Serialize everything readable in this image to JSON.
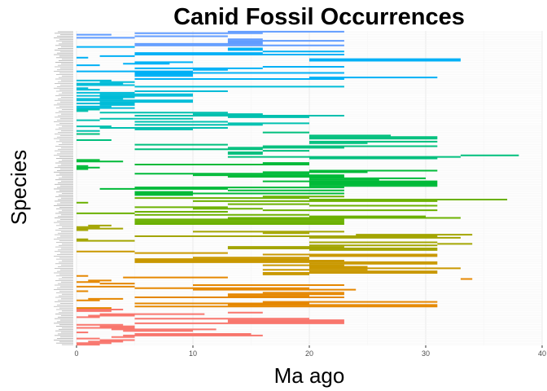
{
  "chart_data": {
    "type": "bar",
    "title": "Canid Fossil Occurrences",
    "xlabel": "Ma ago",
    "ylabel": "Species",
    "xlim": [
      0,
      40
    ],
    "x_ticks": [
      0,
      10,
      20,
      30,
      40
    ],
    "grid": true,
    "legend": "none",
    "colors": [
      "#f8766d",
      "#e58700",
      "#c99800",
      "#a3a500",
      "#6bb100",
      "#00ba38",
      "#00bf7d",
      "#00c0af",
      "#00bcd8",
      "#00b0f6",
      "#619cff",
      "#b983ff",
      "#e76bf3",
      "#fd61d1",
      "#ff67a4"
    ],
    "series": [
      {
        "name": "",
        "ranges": [
          [
            0,
            2
          ],
          [
            0,
            3
          ],
          [
            1,
            4
          ],
          [
            2,
            5
          ],
          [
            0,
            2
          ],
          [
            3,
            5
          ],
          [
            4,
            16
          ],
          [
            5,
            15
          ],
          [
            0,
            1
          ],
          [
            4,
            10
          ],
          [
            3,
            12
          ],
          [
            0,
            5
          ],
          [
            2,
            5
          ],
          [
            0,
            4
          ],
          [
            5,
            23
          ],
          [
            13,
            23
          ],
          [
            13,
            23
          ],
          [
            5,
            20
          ],
          [
            0,
            2
          ],
          [
            1,
            5
          ],
          [
            2,
            11
          ],
          [
            13,
            16
          ],
          [
            0,
            3
          ],
          [
            0,
            4
          ]
        ]
      },
      {
        "name": "",
        "ranges": [
          [
            0,
            3
          ],
          [
            5,
            31
          ],
          [
            13,
            31
          ],
          [
            5,
            20
          ],
          [
            16,
            31
          ],
          [
            0,
            2
          ],
          [
            1,
            4
          ],
          [
            5,
            23
          ],
          [
            13,
            20
          ],
          [
            13,
            23
          ],
          [
            16,
            23
          ],
          [
            0,
            1
          ],
          [
            10,
            24
          ],
          [
            5,
            20
          ],
          [
            0,
            5
          ],
          [
            10,
            23
          ],
          [
            2,
            5
          ],
          [
            0,
            2
          ],
          [
            1,
            3
          ],
          [
            33,
            34
          ],
          [
            4,
            13
          ],
          [
            0,
            1
          ]
        ]
      },
      {
        "name": "",
        "ranges": [
          [
            16,
            20
          ],
          [
            16,
            31
          ],
          [
            20,
            31
          ],
          [
            16,
            25
          ],
          [
            20,
            33
          ],
          [
            20,
            25
          ],
          [
            16,
            23
          ],
          [
            20,
            31
          ],
          [
            5,
            31
          ],
          [
            5,
            23
          ],
          [
            5,
            20
          ],
          [
            10,
            20
          ],
          [
            20,
            31
          ],
          [
            16,
            31
          ],
          [
            5,
            13
          ],
          [
            0,
            5
          ]
        ]
      },
      {
        "name": "",
        "ranges": [
          [
            20,
            31
          ],
          [
            13,
            31
          ],
          [
            13,
            23
          ],
          [
            20,
            31
          ],
          [
            31,
            34
          ],
          [
            20,
            31
          ],
          [
            0,
            5
          ],
          [
            0,
            1
          ],
          [
            20,
            33
          ],
          [
            5,
            31
          ],
          [
            24,
            34
          ],
          [
            16,
            20
          ],
          [
            10,
            23
          ],
          [
            0,
            1
          ],
          [
            0,
            4
          ],
          [
            0,
            2
          ],
          [
            1,
            3
          ]
        ]
      },
      {
        "name": "",
        "ranges": [
          [
            5,
            23
          ],
          [
            5,
            23
          ],
          [
            5,
            23
          ],
          [
            5,
            23
          ],
          [
            13,
            33
          ],
          [
            20,
            30
          ],
          [
            5,
            20
          ],
          [
            0,
            5
          ],
          [
            5,
            13
          ],
          [
            16,
            31
          ],
          [
            10,
            16
          ],
          [
            5,
            13
          ],
          [
            20,
            31
          ],
          [
            13,
            20
          ],
          [
            0,
            1
          ],
          [
            10,
            31
          ],
          [
            20,
            37
          ],
          [
            5,
            20
          ],
          [
            16,
            23
          ]
        ]
      },
      {
        "name": "",
        "ranges": [
          [
            5,
            10
          ],
          [
            5,
            23
          ],
          [
            5,
            10
          ],
          [
            13,
            23
          ],
          [
            2,
            13
          ],
          [
            5,
            23
          ],
          [
            20,
            31
          ],
          [
            20,
            31
          ],
          [
            20,
            31
          ],
          [
            16,
            31
          ],
          [
            20,
            26
          ],
          [
            20,
            30
          ],
          [
            13,
            23
          ],
          [
            10,
            23
          ],
          [
            5,
            20
          ],
          [
            16,
            25
          ],
          [
            20,
            31
          ],
          [
            0,
            1
          ],
          [
            0,
            2
          ],
          [
            0,
            1
          ],
          [
            5,
            20
          ],
          [
            16,
            20
          ],
          [
            0,
            4
          ],
          [
            0,
            2
          ]
        ]
      },
      {
        "name": "",
        "ranges": [
          [
            20,
            31
          ],
          [
            13,
            33
          ],
          [
            33,
            38
          ],
          [
            13,
            16
          ],
          [
            13,
            16
          ],
          [
            16,
            20
          ],
          [
            5,
            16
          ],
          [
            13,
            23
          ],
          [
            16,
            31
          ],
          [
            5,
            13
          ],
          [
            20,
            25
          ],
          [
            20,
            31
          ],
          [
            0,
            3
          ],
          [
            20,
            31
          ],
          [
            20,
            31
          ],
          [
            20,
            27
          ],
          [
            0,
            2
          ],
          [
            16,
            20
          ]
        ]
      },
      {
        "name": "",
        "ranges": [
          [
            0,
            2
          ],
          [
            5,
            10
          ],
          [
            2,
            13
          ],
          [
            0,
            3
          ],
          [
            5,
            16
          ],
          [
            13,
            20
          ],
          [
            5,
            13
          ],
          [
            0,
            2
          ],
          [
            2,
            10
          ],
          [
            13,
            20
          ],
          [
            5,
            23
          ],
          [
            10,
            16
          ],
          [
            2,
            13
          ],
          [
            0,
            1
          ],
          [
            0,
            2
          ]
        ]
      },
      {
        "name": "",
        "ranges": [
          [
            0,
            5
          ],
          [
            0,
            3
          ],
          [
            2,
            5
          ],
          [
            0,
            5
          ],
          [
            2,
            10
          ],
          [
            0,
            10
          ],
          [
            0,
            4
          ],
          [
            2,
            5
          ],
          [
            0,
            10
          ],
          [
            2,
            10
          ],
          [
            0,
            5
          ],
          [
            5,
            13
          ],
          [
            0,
            2
          ],
          [
            0,
            1
          ],
          [
            5,
            23
          ],
          [
            0,
            5
          ],
          [
            0,
            4
          ],
          [
            2,
            5
          ],
          [
            0,
            3
          ]
        ]
      },
      {
        "name": "",
        "ranges": [
          [
            5,
            23
          ],
          [
            20,
            31
          ],
          [
            5,
            10
          ],
          [
            5,
            10
          ],
          [
            5,
            23
          ],
          [
            0,
            10
          ],
          [
            10,
            13
          ],
          [
            5,
            16
          ],
          [
            16,
            23
          ],
          [
            0,
            2
          ],
          [
            4,
            8
          ],
          [
            5,
            10
          ],
          [
            20,
            33
          ],
          [
            20,
            33
          ],
          [
            0,
            1
          ],
          [
            2,
            5
          ],
          [
            5,
            23
          ],
          [
            5,
            16
          ],
          [
            16,
            23
          ],
          [
            13,
            16
          ],
          [
            13,
            16
          ],
          [
            0,
            5
          ]
        ]
      },
      {
        "name": "",
        "ranges": [
          [
            5,
            23
          ],
          [
            5,
            16
          ],
          [
            13,
            16
          ],
          [
            13,
            23
          ],
          [
            13,
            16
          ],
          [
            0,
            5
          ],
          [
            5,
            13
          ],
          [
            0,
            3
          ],
          [
            5,
            16
          ],
          [
            13,
            23
          ]
        ]
      }
    ]
  }
}
